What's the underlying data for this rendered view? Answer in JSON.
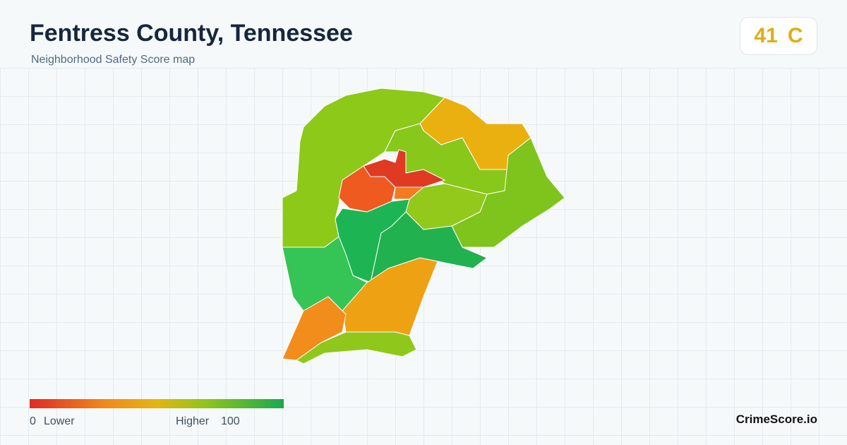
{
  "header": {
    "title": "Fentress County, Tennessee",
    "subtitle": "Neighborhood Safety Score map"
  },
  "score": {
    "value": 41,
    "grade": "C"
  },
  "legend": {
    "min": 0,
    "min_label": "Lower",
    "max_label": "Higher",
    "max": 100
  },
  "footer": {
    "brand": "CrimeScore.io"
  }
}
